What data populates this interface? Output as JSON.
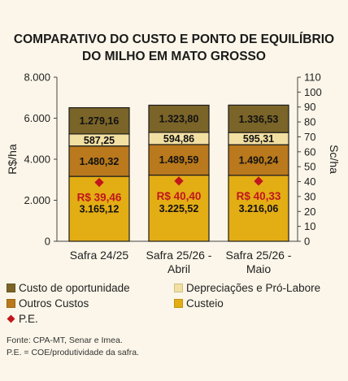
{
  "chart_data": {
    "type": "bar",
    "stacked": true,
    "title": [
      "COMPARATIVO DO CUSTO E PONTO DE EQUILÍBRIO",
      "DO MILHO EM MATO GROSSO"
    ],
    "categories": [
      [
        "Safra 24/25"
      ],
      [
        "Safra 25/26 -",
        "Abril"
      ],
      [
        "Safra 25/26 -",
        "Maio"
      ]
    ],
    "ylabel": "R$/ha",
    "y2label": "Sc/ha",
    "ylim": [
      0,
      8000
    ],
    "y_ticks": [
      "0",
      "2.000",
      "4.000",
      "6.000",
      "8.000"
    ],
    "y_tick_values": [
      0,
      2000,
      4000,
      6000,
      8000
    ],
    "y2lim": [
      0,
      110
    ],
    "y2_ticks": [
      "0",
      "10",
      "20",
      "30",
      "40",
      "50",
      "60",
      "70",
      "80",
      "90",
      "100",
      "110"
    ],
    "series": [
      {
        "name": "Custeio",
        "color": "#e3ad14",
        "values": [
          3165.12,
          3225.52,
          3216.06
        ],
        "labels": [
          "3.165,12",
          "3.225,52",
          "3.216,06"
        ]
      },
      {
        "name": "Outros Custos",
        "color": "#b9791c",
        "values": [
          1480.32,
          1489.59,
          1490.24
        ],
        "labels": [
          "1.480,32",
          "1.489,59",
          "1.490,24"
        ]
      },
      {
        "name": "Depreciações e Pró-Labore",
        "color": "#f2dfa2",
        "values": [
          587.25,
          594.86,
          595.31
        ],
        "labels": [
          "587,25",
          "594,86",
          "595,31"
        ]
      },
      {
        "name": "Custo de oportunidade",
        "color": "#7a6428",
        "values": [
          1279.16,
          1323.8,
          1336.53
        ],
        "labels": [
          "1.279,16",
          "1.323,80",
          "1.336,53"
        ]
      }
    ],
    "pe_series": {
      "name": "P.E.",
      "color": "#c0161d",
      "axis": "right",
      "values": [
        39.46,
        40.4,
        40.33
      ],
      "labels": [
        "R$ 39,46",
        "R$ 40,40",
        "R$ 40,33"
      ]
    },
    "legend_position": "bottom",
    "grid": false
  },
  "legend": [
    {
      "label": "Custo de oportunidade",
      "color": "#7a6428",
      "shape": "square"
    },
    {
      "label": "Depreciações e Pró-Labore",
      "color": "#f2dfa2",
      "shape": "square"
    },
    {
      "label": "Outros Custos",
      "color": "#b9791c",
      "shape": "square"
    },
    {
      "label": "Custeio",
      "color": "#e3ad14",
      "shape": "square"
    },
    {
      "label": "P.E.",
      "color": "#c0161d",
      "shape": "diamond"
    }
  ],
  "footer": {
    "source": "Fonte: CPA-MT, Senar e Imea.",
    "note": "P.E. = COE/produtividade da safra."
  }
}
